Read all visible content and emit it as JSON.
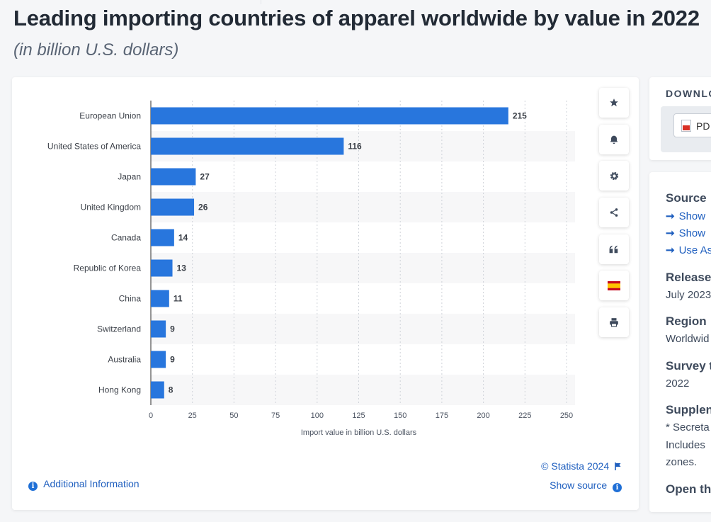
{
  "header": {
    "title": "Leading importing countries of apparel worldwide by value in 2022",
    "subtitle": "(in billion U.S. dollars)"
  },
  "chart_data": {
    "type": "bar",
    "orientation": "horizontal",
    "categories": [
      "European Union",
      "United States of America",
      "Japan",
      "United Kingdom",
      "Canada",
      "Republic of Korea",
      "China",
      "Switzerland",
      "Australia",
      "Hong Kong"
    ],
    "values": [
      215,
      116,
      27,
      26,
      14,
      13,
      11,
      9,
      9,
      8
    ],
    "value_labels": [
      "215",
      "116",
      "27",
      "26",
      "14",
      "13",
      "11",
      "9",
      "9",
      "8"
    ],
    "xlabel": "Import value in billion U.S. dollars",
    "ylabel": "",
    "xlim": [
      0,
      250
    ],
    "xticks": [
      0,
      25,
      50,
      75,
      100,
      125,
      150,
      175,
      200,
      225,
      250
    ],
    "grid": "vertical dotted",
    "bar_color": "#2876dd"
  },
  "chart_footer": {
    "copyright": "© Statista 2024",
    "show_source": "Show source",
    "additional_info": "Additional Information"
  },
  "toolbar": {
    "icons": [
      "star-icon",
      "bell-icon",
      "gear-icon",
      "share-icon",
      "quote-icon",
      "spain-flag-icon",
      "print-icon"
    ]
  },
  "download": {
    "title": "DOWNLO",
    "pdf_label": "PD"
  },
  "source_panel": {
    "source_heading": "Source",
    "links": [
      "Show",
      "Show",
      "Use As"
    ],
    "release_heading": "Release",
    "release_value": "July 2023",
    "region_heading": "Region",
    "region_value": "Worldwid",
    "survey_heading": "Survey t",
    "survey_value": "2022",
    "supplement_heading": "Supplen",
    "supplement_lines": [
      "* Secreta",
      "Includes",
      "zones."
    ],
    "open_heading": "Open th"
  },
  "colors": {
    "accent": "#1f5fbf",
    "bar": "#2876dd",
    "flag_red": "#c60b1e",
    "flag_yellow": "#ffc400"
  }
}
